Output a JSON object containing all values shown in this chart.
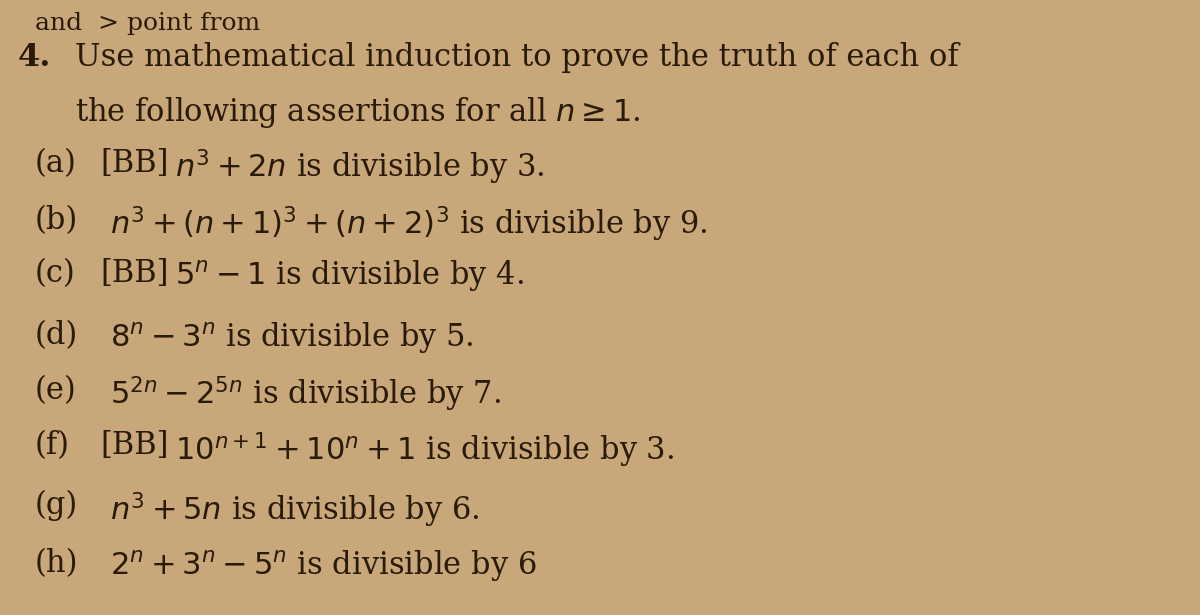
{
  "bg_color": "#c8a87a",
  "text_color": "#2a1a08",
  "figsize": [
    12.0,
    6.15
  ],
  "dpi": 100,
  "font_size": 22,
  "font_size_bold": 23,
  "top_partial": "and > point from",
  "items": [
    {
      "label": "(a)",
      "tag": "[BB]",
      "math": "$n^3 + 2n$ is divisible by 3."
    },
    {
      "label": "(b)",
      "tag": "",
      "math": "$n^3 + (n+1)^3 + (n+2)^3$ is divisible by 9."
    },
    {
      "label": "(c)",
      "tag": "[BB]",
      "math": "$5^n - 1$ is divisible by 4."
    },
    {
      "label": "(d)",
      "tag": "",
      "math": "$8^n - 3^n$ is divisible by 5."
    },
    {
      "label": "(e)",
      "tag": "",
      "math": "$5^{2n} - 2^{5n}$ is divisible by 7."
    },
    {
      "label": "(f)",
      "tag": "[BB]",
      "math": "$10^{n+1} + 10^n + 1$ is divisible by 3."
    },
    {
      "label": "(g)",
      "tag": "",
      "math": "$n^3 + 5n$ is divisible by 6."
    },
    {
      "label": "(h)",
      "tag": "",
      "math": "$2^n + 3^n - 5^n$ is divisible by 6"
    }
  ]
}
